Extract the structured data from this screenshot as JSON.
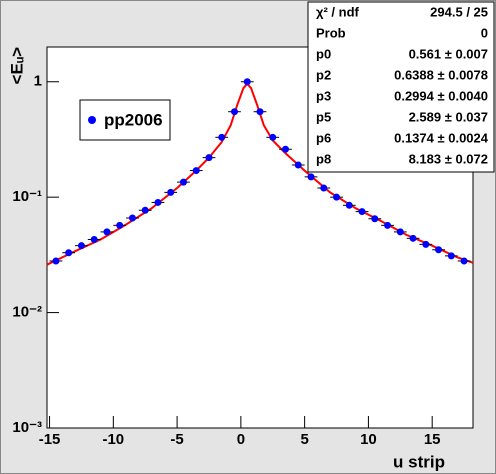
{
  "chart_data": {
    "type": "scatter",
    "x_label": "u strip",
    "y_label": "<Eᵤ>",
    "xlim": [
      -15.2,
      18.2
    ],
    "xticks": [
      -15,
      -10,
      -5,
      0,
      5,
      10,
      15
    ],
    "ylim": [
      0.001,
      2
    ],
    "log_y": true,
    "yticks": [
      {
        "value": 0.001,
        "label": "10⁻³"
      },
      {
        "value": 0.01,
        "label": "10⁻²"
      },
      {
        "value": 0.1,
        "label": "10⁻¹"
      },
      1
    ],
    "xerr": 0.5,
    "series": [
      {
        "name": "pp2006",
        "color": "#0000ff",
        "x": [
          -14.5,
          -13.5,
          -12.5,
          -11.5,
          -10.5,
          -9.5,
          -8.5,
          -7.5,
          -6.5,
          -5.5,
          -4.5,
          -3.5,
          -2.5,
          -1.5,
          -0.5,
          0.5,
          1.5,
          2.5,
          3.5,
          4.5,
          5.5,
          6.5,
          7.5,
          8.5,
          9.5,
          10.5,
          11.5,
          12.5,
          13.5,
          14.5,
          15.5,
          16.5,
          17.5
        ],
        "values": [
          0.028,
          0.033,
          0.038,
          0.043,
          0.05,
          0.057,
          0.066,
          0.077,
          0.09,
          0.11,
          0.135,
          0.17,
          0.22,
          0.33,
          0.55,
          1.0,
          0.55,
          0.33,
          0.26,
          0.19,
          0.15,
          0.12,
          0.1,
          0.085,
          0.075,
          0.065,
          0.057,
          0.05,
          0.044,
          0.039,
          0.035,
          0.031,
          0.028
        ]
      }
    ],
    "fit": {
      "color": "#ff0000",
      "x": [
        -15.2,
        -13,
        -11,
        -9,
        -7,
        -5,
        -3.5,
        -2.5,
        -1.5,
        -0.8,
        -0.3,
        0.2,
        0.5,
        0.8,
        1.3,
        1.8,
        2.5,
        3.5,
        5,
        7,
        9,
        11,
        13,
        15,
        17,
        18.2
      ],
      "values": [
        0.026,
        0.034,
        0.043,
        0.058,
        0.08,
        0.12,
        0.17,
        0.22,
        0.3,
        0.42,
        0.62,
        0.88,
        0.96,
        0.88,
        0.62,
        0.42,
        0.31,
        0.24,
        0.17,
        0.11,
        0.08,
        0.062,
        0.047,
        0.038,
        0.03,
        0.027
      ]
    },
    "legend": "top-left",
    "stats": [
      [
        "χ² / ndf",
        "294.5 / 25"
      ],
      [
        "Prob",
        "0"
      ],
      [
        "p0",
        "0.561 ± 0.007"
      ],
      [
        "p2",
        "0.6388 ± 0.0078"
      ],
      [
        "p3",
        "0.2994 ± 0.0040"
      ],
      [
        "p5",
        "2.589 ± 0.037"
      ],
      [
        "p6",
        "0.1374 ± 0.0024"
      ],
      [
        "p8",
        "8.183 ± 0.072"
      ]
    ]
  }
}
